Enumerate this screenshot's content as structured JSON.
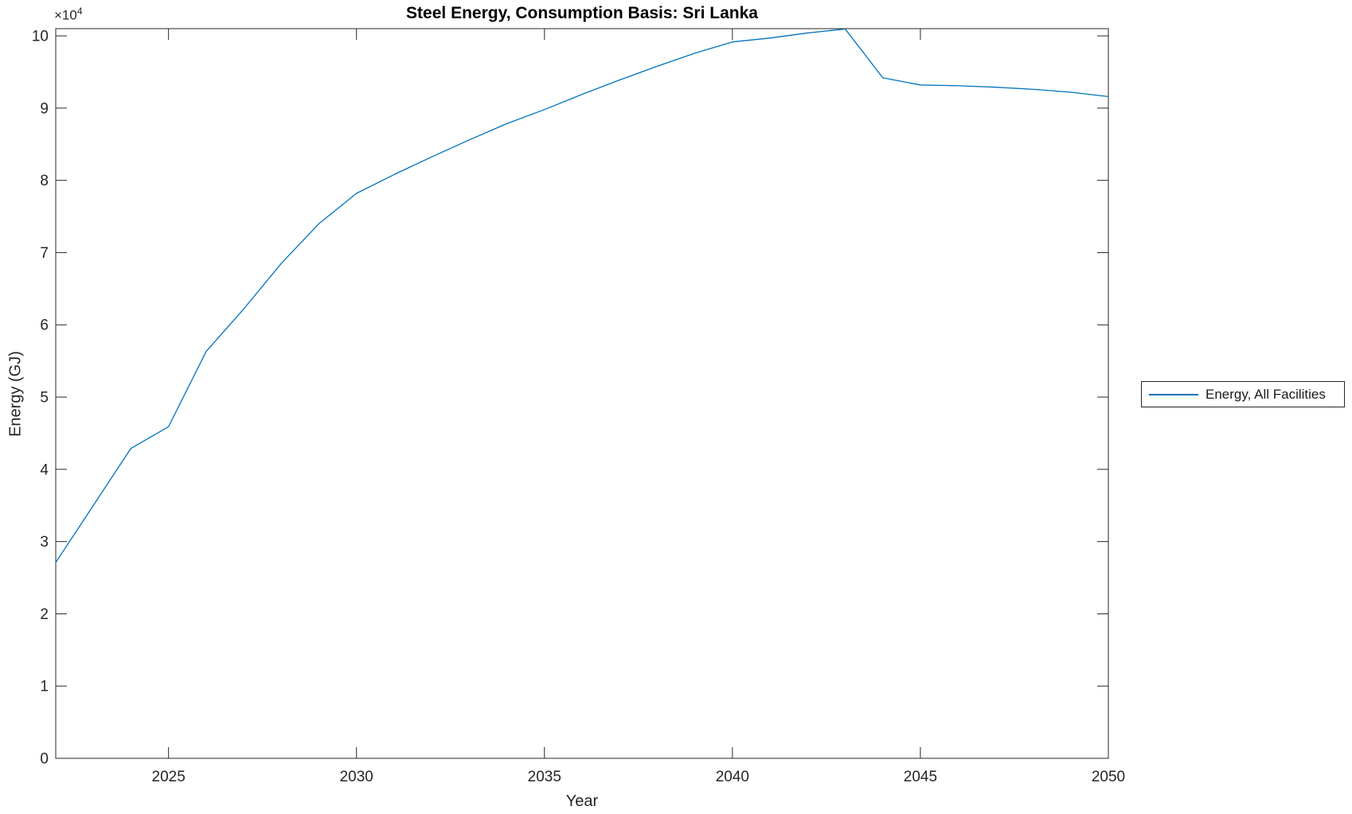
{
  "figure": {
    "title": "Steel Energy, Consumption Basis: Sri Lanka",
    "x_axis_label": "Year",
    "y_axis_label": "Energy (GJ)",
    "y_multiplier_base": "×10",
    "y_multiplier_exponent": "4"
  },
  "legend": {
    "position": "right-outside-middle",
    "entries": [
      {
        "label": "Energy, All Facilities",
        "color": "#0072BD"
      }
    ]
  },
  "colors": {
    "line": "#0072BD",
    "axis": "#262626",
    "background": "#ffffff"
  },
  "chart_data": {
    "type": "line",
    "title": "Steel Energy, Consumption Basis: Sri Lanka",
    "xlabel": "Year",
    "ylabel": "Energy (GJ)",
    "grid": false,
    "legend_position": "right-outside",
    "xlim": [
      2022,
      2050
    ],
    "ylim": [
      0,
      101000
    ],
    "x_ticks": [
      2025,
      2030,
      2035,
      2040,
      2045,
      2050
    ],
    "y_ticks": [
      0,
      10000,
      20000,
      30000,
      40000,
      50000,
      60000,
      70000,
      80000,
      90000,
      100000
    ],
    "y_tick_labels": [
      "0",
      "1",
      "2",
      "3",
      "4",
      "5",
      "6",
      "7",
      "8",
      "9",
      "10"
    ],
    "y_axis_multiplier": 10000,
    "series": [
      {
        "name": "Energy, All Facilities",
        "color": "#0072BD",
        "x": [
          2022,
          2023,
          2024,
          2025,
          2026,
          2027,
          2028,
          2029,
          2030,
          2031,
          2032,
          2033,
          2034,
          2035,
          2036,
          2037,
          2038,
          2039,
          2040,
          2041,
          2042,
          2043,
          2044,
          2045,
          2046,
          2047,
          2048,
          2049,
          2050
        ],
        "y": [
          27100,
          35000,
          42900,
          45900,
          56300,
          62200,
          68500,
          74000,
          78200,
          80800,
          83250,
          85600,
          87850,
          89800,
          91900,
          93900,
          95800,
          97600,
          99160,
          99700,
          100400,
          100950,
          94200,
          93200,
          93100,
          92900,
          92600,
          92200,
          91600
        ]
      }
    ]
  }
}
